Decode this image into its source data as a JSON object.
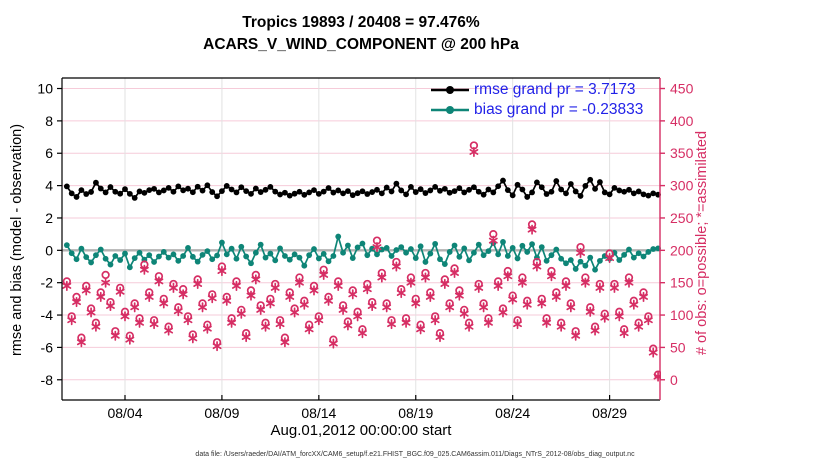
{
  "header": {
    "title_line1": "Tropics 19893 / 20408 = 97.476%",
    "title_line2": "ACARS_V_WIND_COMPONENT @ 200 hPa"
  },
  "legend": {
    "items": [
      {
        "label": "rmse grand pr = 3.7173",
        "color": "#000000"
      },
      {
        "label": "bias grand pr = -0.23833",
        "color": "#0E8577"
      }
    ],
    "text_color": "#2222E8"
  },
  "caption": "data file: /Users/raeder/DAI/ATM_forcXX/CAM6_setup/f.e21.FHIST_BGC.f09_025.CAM6assim.011/Diags_NTrS_2012-08/obs_diag_output.nc",
  "colors": {
    "pink": "#D62E64",
    "teal": "#0E8577",
    "black": "#000000",
    "grid_horizontal": "#F6CBD9",
    "grid_vertical": "#E2E2E2",
    "zero_line": "#B2B2B2",
    "legend_text": "#2222E8"
  },
  "chart_data": {
    "type": "line",
    "title": "Tropics 19893 / 20408 = 97.476%",
    "subtitle": "ACARS_V_WIND_COMPONENT @ 200 hPa",
    "xlabel": "Aug.01,2012 00:00:00 start",
    "ylabel_left": "rmse and bias (model - observation)",
    "ylabel_right": "# of obs: o=possible; *=assimilated",
    "grid": true,
    "legend_position": "top-right",
    "xlim": [
      0.75,
      31.6
    ],
    "ylim_left": [
      -9.25,
      10.65
    ],
    "ylim_right": [
      -31.25,
      466.25
    ],
    "x_ticks": [
      {
        "value": 4,
        "label": "08/04"
      },
      {
        "value": 9,
        "label": "08/09"
      },
      {
        "value": 14,
        "label": "08/14"
      },
      {
        "value": 19,
        "label": "08/19"
      },
      {
        "value": 24,
        "label": "08/24"
      },
      {
        "value": 29,
        "label": "08/29"
      }
    ],
    "y_ticks_left": [
      10,
      8,
      6,
      4,
      2,
      0,
      -2,
      -4,
      -6,
      -8
    ],
    "y_ticks_right": [
      450,
      400,
      350,
      300,
      250,
      200,
      150,
      100,
      50,
      0
    ],
    "x_start_day": 1.0,
    "x_step_days": 0.25,
    "zero_reference_line": 0,
    "series": [
      {
        "name": "rmse",
        "legend": "rmse grand pr = 3.7173",
        "axis": "left",
        "marker": "filled-circle",
        "color": "#000000",
        "values": [
          3.95,
          3.52,
          3.3,
          3.72,
          3.48,
          3.61,
          4.18,
          3.82,
          3.58,
          3.91,
          3.62,
          3.5,
          3.78,
          3.49,
          3.24,
          3.64,
          3.55,
          3.72,
          3.8,
          3.58,
          3.7,
          3.86,
          3.62,
          3.95,
          3.71,
          3.81,
          3.59,
          3.93,
          3.69,
          4.02,
          3.6,
          3.34,
          3.66,
          3.98,
          3.76,
          3.58,
          3.9,
          3.66,
          3.49,
          3.82,
          3.6,
          3.74,
          3.92,
          3.63,
          3.45,
          3.56,
          3.38,
          3.5,
          3.62,
          3.43,
          3.58,
          3.72,
          3.49,
          3.63,
          3.85,
          3.57,
          3.7,
          3.52,
          3.66,
          3.41,
          3.53,
          3.65,
          3.48,
          3.6,
          3.74,
          3.52,
          3.88,
          3.64,
          4.12,
          3.7,
          3.46,
          3.92,
          3.6,
          3.78,
          3.54,
          3.7,
          3.92,
          3.68,
          3.8,
          3.56,
          3.66,
          3.84,
          3.58,
          3.74,
          3.9,
          3.62,
          3.44,
          3.76,
          3.58,
          3.96,
          4.31,
          3.72,
          3.4,
          4.05,
          3.76,
          3.3,
          3.58,
          4.2,
          3.9,
          3.48,
          3.62,
          4.28,
          3.76,
          3.52,
          4.1,
          3.64,
          3.36,
          3.98,
          4.36,
          3.8,
          4.22,
          3.58,
          3.46,
          3.86,
          3.7,
          3.62,
          3.74,
          3.52,
          3.64,
          3.46,
          3.38,
          3.52,
          3.44
        ]
      },
      {
        "name": "bias",
        "legend": "bias grand pr = -0.23833",
        "axis": "left",
        "marker": "filled-circle",
        "color": "#0E8577",
        "values": [
          0.32,
          -0.18,
          -0.55,
          0.1,
          -0.42,
          -0.75,
          -0.3,
          0.05,
          -0.52,
          -0.88,
          -0.35,
          -0.6,
          -0.2,
          -1.05,
          -0.48,
          -0.15,
          -0.58,
          -0.3,
          -0.72,
          -0.38,
          -0.1,
          -0.45,
          -0.25,
          -0.65,
          -0.35,
          0.15,
          -0.4,
          -0.7,
          -0.28,
          -0.05,
          -0.55,
          -0.32,
          0.48,
          -0.25,
          0.1,
          -0.52,
          0.22,
          -0.38,
          -0.8,
          -0.15,
          0.35,
          -0.45,
          -0.2,
          -0.62,
          0.12,
          -0.35,
          -0.58,
          -0.25,
          -0.45,
          -0.95,
          -0.3,
          0.08,
          -0.5,
          -0.22,
          -0.68,
          -0.35,
          0.85,
          -0.15,
          0.3,
          -0.48,
          0.18,
          0.42,
          -0.3,
          0.1,
          -0.25,
          0.05,
          0.15,
          -0.35,
          0.02,
          0.2,
          -0.15,
          0.08,
          -0.48,
          0.25,
          -0.72,
          -0.2,
          0.4,
          -0.55,
          -0.85,
          -0.1,
          0.3,
          -0.4,
          0.12,
          -0.62,
          -0.15,
          0.35,
          -0.3,
          -0.05,
          0.45,
          -0.25,
          0.52,
          -0.35,
          0.15,
          -0.5,
          0.28,
          -0.1,
          0.38,
          -0.45,
          0.2,
          -0.65,
          -0.3,
          0.05,
          -0.52,
          -0.8,
          -0.6,
          -1.15,
          -0.7,
          -0.95,
          -0.45,
          -1.2,
          -0.65,
          -0.35,
          -0.52,
          -0.15,
          -0.6,
          -0.28,
          0.05,
          -0.45,
          -0.18,
          -0.38,
          -0.1,
          0.08,
          0.12
        ]
      },
      {
        "name": "possible",
        "legend": "o=possible",
        "axis": "right",
        "marker": "open-circle",
        "color": "#D62E64",
        "values": [
          152,
          98,
          128,
          65,
          145,
          110,
          88,
          135,
          162,
          120,
          75,
          142,
          105,
          68,
          118,
          95,
          178,
          135,
          92,
          160,
          125,
          82,
          148,
          112,
          140,
          98,
          70,
          155,
          118,
          85,
          132,
          58,
          175,
          128,
          95,
          152,
          108,
          72,
          138,
          162,
          115,
          88,
          125,
          148,
          92,
          65,
          135,
          110,
          158,
          122,
          85,
          145,
          98,
          170,
          128,
          62,
          152,
          115,
          90,
          138,
          105,
          78,
          148,
          120,
          215,
          165,
          118,
          92,
          182,
          140,
          95,
          158,
          125,
          85,
          165,
          135,
          98,
          72,
          155,
          118,
          172,
          138,
          108,
          88,
          362,
          148,
          118,
          95,
          225,
          152,
          110,
          168,
          130,
          92,
          158,
          122,
          240,
          182,
          125,
          95,
          168,
          135,
          88,
          152,
          118,
          75,
          205,
          158,
          112,
          82,
          148,
          102,
          195,
          148,
          105,
          78,
          158,
          122,
          88,
          135,
          98,
          48,
          8
        ]
      },
      {
        "name": "assimilated",
        "legend": "*=assimilated",
        "axis": "right",
        "marker": "asterisk",
        "color": "#D62E64",
        "values": [
          145,
          92,
          120,
          58,
          138,
          104,
          82,
          128,
          150,
          114,
          68,
          136,
          98,
          62,
          112,
          88,
          170,
          128,
          86,
          152,
          118,
          76,
          142,
          106,
          132,
          92,
          64,
          148,
          112,
          79,
          126,
          52,
          168,
          122,
          88,
          145,
          102,
          66,
          130,
          155,
          108,
          82,
          118,
          142,
          86,
          58,
          128,
          104,
          150,
          116,
          78,
          138,
          92,
          162,
          122,
          56,
          145,
          108,
          84,
          132,
          98,
          72,
          140,
          114,
          205,
          158,
          112,
          86,
          175,
          134,
          88,
          150,
          118,
          78,
          158,
          128,
          92,
          66,
          148,
          112,
          165,
          130,
          102,
          82,
          352,
          142,
          112,
          88,
          215,
          145,
          104,
          160,
          124,
          86,
          150,
          116,
          232,
          175,
          118,
          88,
          160,
          128,
          82,
          145,
          112,
          68,
          196,
          150,
          105,
          76,
          142,
          96,
          188,
          142,
          98,
          72,
          150,
          116,
          82,
          128,
          92,
          42,
          5
        ]
      }
    ]
  }
}
